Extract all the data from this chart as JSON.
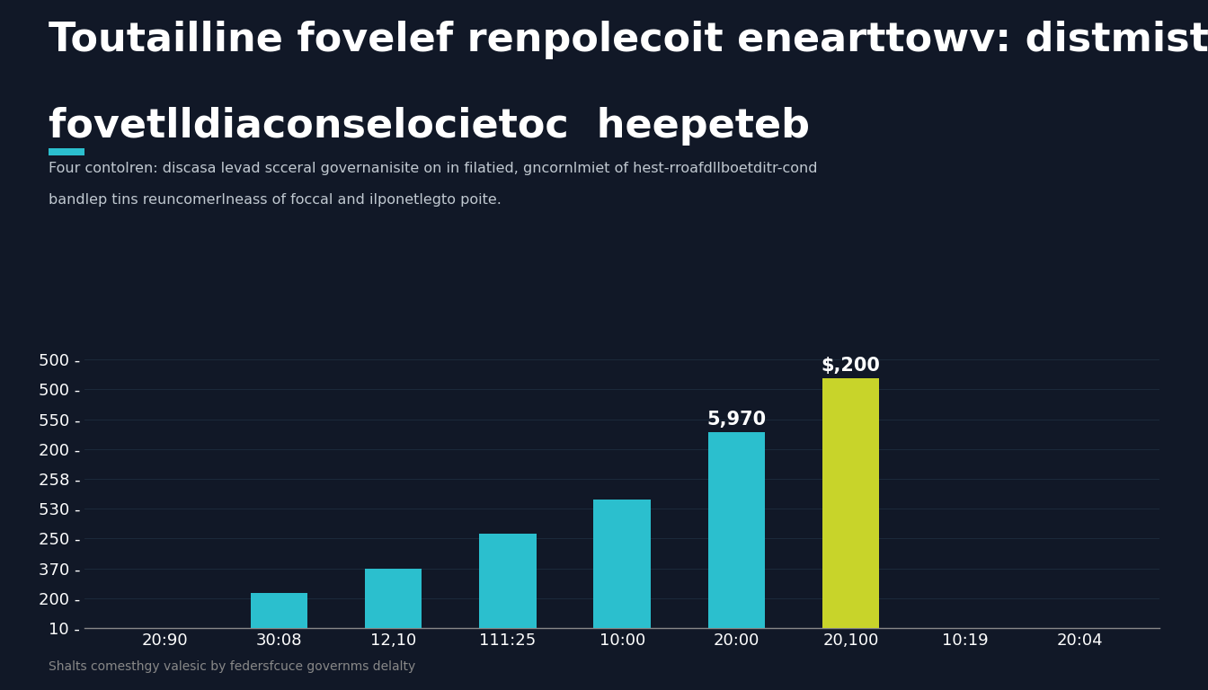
{
  "title_line1": "Toutailline fovelef renpolecoit enearttowv: distmiste",
  "title_line2": "fovetlldiaconselocietoc  heepeteb",
  "subtitle_line1": "Four contolren: discasa levad scceral governanisite on in filatied, gncornlmiet of hest-rroafdllboetditr-cond",
  "subtitle_line2": "bandlep tins reuncomerIneass of foccal and ilponetlegto poite.",
  "source": "Shalts comesthgy valesic by federsfcuce governms delalty",
  "background_color": "#111827",
  "text_color": "#ffffff",
  "accent_color": "#2bbfce",
  "yellow_color": "#c8d42a",
  "categories": [
    "20:90",
    "30:08",
    "12,10",
    "111:25",
    "10:00",
    "20:00",
    "20,100",
    "10:19",
    "20:04"
  ],
  "values": [
    0,
    1.3,
    2.2,
    3.5,
    4.8,
    7.3,
    9.3,
    0,
    0
  ],
  "bar_colors": [
    "none",
    "#2bbfce",
    "#2bbfce",
    "#2bbfce",
    "#2bbfce",
    "#2bbfce",
    "#c8d42a",
    "none",
    "none"
  ],
  "bar_labels": [
    "",
    "",
    "",
    "",
    "",
    "5,970",
    "$,200",
    "",
    ""
  ],
  "ytick_labels_topdown": [
    "500 -",
    "500 -",
    "550 -",
    "200 -",
    "258 -",
    "530 -",
    "250 -",
    "370 -",
    "200 -",
    "10 -"
  ],
  "title_fontsize": 32,
  "subtitle_fontsize": 11.5,
  "source_fontsize": 10,
  "tick_fontsize": 13,
  "bar_label_fontsize": 15
}
